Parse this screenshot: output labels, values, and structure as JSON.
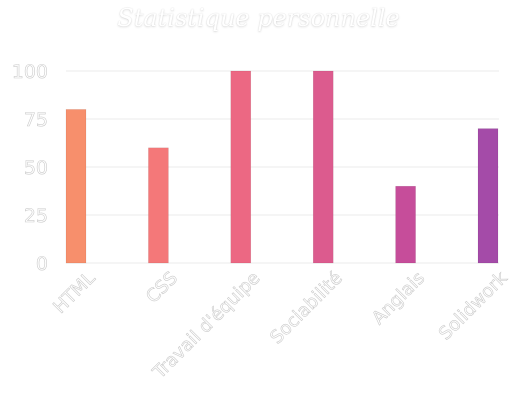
{
  "chart_data": {
    "type": "bar",
    "title": "Statistique personnelle",
    "categories": [
      "HTML",
      "CSS",
      "Travail d'équipe",
      "Sociabilité",
      "Anglais",
      "Solidwork"
    ],
    "values": [
      80,
      60,
      100,
      100,
      40,
      70
    ],
    "yticks": [
      0,
      25,
      50,
      75,
      100
    ],
    "ylim": [
      0,
      100
    ],
    "grid": true,
    "colors": [
      "#f78f6c",
      "#f47879",
      "#ec6883",
      "#dc5b8e",
      "#c64d9a",
      "#a44ba8"
    ],
    "text_color": "#ffffff",
    "grid_color": "#ebebeb"
  }
}
